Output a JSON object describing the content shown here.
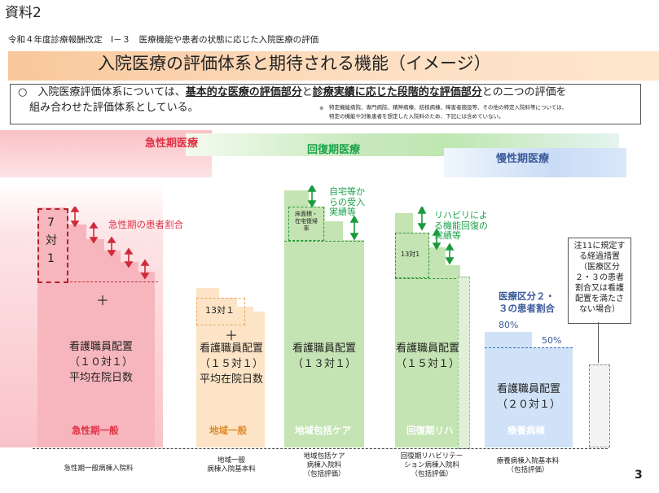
{
  "doc_label": "資料2",
  "subtitle": "令和４年度診療報酬改定　Ⅰ－３　医療機能や患者の状態に応じた入院医療の評価",
  "title": "入院医療の評価体系と期待される機能（イメージ）",
  "intro": {
    "bullet": "○",
    "line1_a": "入院医療評価体系については、",
    "line1_b": "基本的な医療の評価部分",
    "line1_c": "と",
    "line1_d": "診療実績に応じた段階的な評価部分",
    "line1_e": "との二つの評価を",
    "line2": "組み合わせた評価体系としている。",
    "note_mark": "※",
    "note1": "特定機能病院、専門病院、精神病棟、結核病棟、障害者施設等、その他の特定入院料等については、",
    "note2": "特定の機能や対象患者を想定した入院料のため、下記には含めていない。"
  },
  "bands": {
    "acute": "急性期医療",
    "recovery": "回復期医療",
    "chronic": "慢性期医療"
  },
  "acute": {
    "box_7": "7",
    "box_tai": "対",
    "box_1": "1",
    "patient_ratio": "急性期の患者割合",
    "plus": "＋",
    "staff1": "看護職員配置",
    "staff2": "（１０対１）",
    "avg": "平均在院日数",
    "name": "急性期一般",
    "foot": "急性期一般病棟入院料"
  },
  "regional": {
    "box": "13対１",
    "plus": "＋",
    "staff1": "看護職員配置",
    "staff2": "（１５対１）",
    "avg": "平均在院日数",
    "name": "地域一般",
    "foot1": "地域一般",
    "foot2": "病棟入院基本料"
  },
  "community": {
    "box1": "床面積・",
    "box2": "在宅復帰",
    "box3": "率",
    "note1": "自宅等か",
    "note2": "らの受入",
    "note3": "実績等",
    "staff1": "看護職員配置",
    "staff2": "（１３対１）",
    "name": "地域包括ケア",
    "foot1": "地域包括ケア",
    "foot2": "病棟入院料",
    "foot3": "（包括評価）"
  },
  "rehab": {
    "box": "13対1",
    "note1": "リハビリによ",
    "note2": "る機能回復の",
    "note3": "実績等",
    "staff1": "看護職員配置",
    "staff2": "（１５対１）",
    "name": "回復期リハ",
    "foot1": "回復期リハビリテー",
    "foot2": "ション病棟入院料",
    "foot3": "（包括評価）"
  },
  "longterm": {
    "class1": "医療区分２・",
    "class2": "３の患者割合",
    "pct80": "80%",
    "pct50": "50%",
    "staff1": "看護職員配置",
    "staff2": "（２０対１）",
    "name": "療養病棟",
    "foot1": "療養病棟入院基本料",
    "foot2": "（包括評価）"
  },
  "transitional": {
    "l1": "注11に規定す",
    "l2": "る経過措置",
    "l3": "（医療区分",
    "l4": "２・３の患者",
    "l5": "割合又は看護",
    "l6": "配置を満たさ",
    "l7": "ない場合）"
  },
  "page_number": "3",
  "colors": {
    "acute_pink": "#f7b8bf",
    "regional_peach": "#fde3c4",
    "community_green": "#cde8bf",
    "longterm_blue": "#cde0f7",
    "title_band": "#fbd0a8",
    "accent_red": "#e03046"
  }
}
